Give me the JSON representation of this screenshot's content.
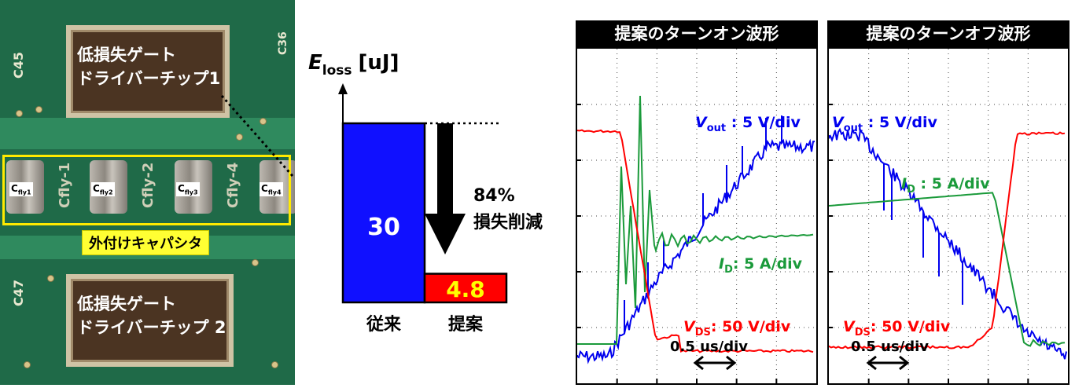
{
  "photo": {
    "chip1_label": "低損失ゲート\nドライバーチップ1",
    "chip2_label": "低損失ゲート\nドライバーチップ 2",
    "caps_label": "外付けキャパシタ",
    "pcb_text": [
      "C45",
      "C47",
      "C36",
      "Cfly-1",
      "Cfly-2",
      "Cfly-4"
    ],
    "capacitors": [
      {
        "base": "C",
        "sub": "fly1"
      },
      {
        "base": "C",
        "sub": "fly2"
      },
      {
        "base": "C",
        "sub": "fly3"
      },
      {
        "base": "C",
        "sub": "fly4"
      }
    ]
  },
  "chart_data": [
    {
      "type": "bar",
      "ylabel_main": "E",
      "ylabel_sub": "loss",
      "ylabel_unit": "[uJ]",
      "categories": [
        "従来",
        "提案"
      ],
      "values": [
        30,
        4.8
      ],
      "value_labels": [
        "30",
        "4.8"
      ],
      "colors": [
        "#1010ff",
        "#ff0000"
      ],
      "value_text_colors": [
        "#ffffff",
        "#ffff00"
      ],
      "annotation": [
        "84%",
        "損失削減"
      ],
      "ylim": [
        0,
        30
      ]
    },
    {
      "type": "line",
      "title": "提案のターンオン波形",
      "time_scale": "0.5 us/div",
      "series": [
        {
          "name": "V_out",
          "label_main": "V",
          "label_sub": "out",
          "label_rest": " : 5 V/div",
          "color": "#0000ee"
        },
        {
          "name": "I_D",
          "label_main": "I",
          "label_sub": "D",
          "label_rest": ": 5 A/div",
          "color": "#1a9a3a"
        },
        {
          "name": "V_DS",
          "label_main": "V",
          "label_sub": "DS",
          "label_rest": ": 50 V/div",
          "color": "#ff0000"
        }
      ]
    },
    {
      "type": "line",
      "title": "提案のターンオフ波形",
      "time_scale": "0.5 us/div",
      "series": [
        {
          "name": "V_out",
          "label_main": "V",
          "label_sub": "out",
          "label_rest": " : 5 V/div",
          "color": "#0000ee"
        },
        {
          "name": "I_D",
          "label_main": "I",
          "label_sub": "D",
          "label_rest": " : 5 A/div",
          "color": "#1a9a3a"
        },
        {
          "name": "V_DS",
          "label_main": "V",
          "label_sub": "DS",
          "label_rest": ": 50 V/div",
          "color": "#ff0000"
        }
      ]
    }
  ]
}
